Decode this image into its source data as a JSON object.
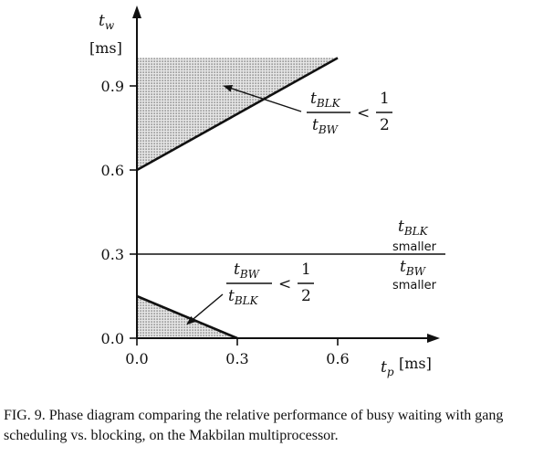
{
  "chart_data": {
    "type": "area",
    "x_axis": {
      "label": "t",
      "label_subscript": "p",
      "unit": "[ms]",
      "range": [
        0,
        0.72
      ],
      "ticks": [
        "0.0",
        "0.3",
        "0.6"
      ],
      "tick_values": [
        0.0,
        0.3,
        0.6
      ]
    },
    "y_axis": {
      "label": "t",
      "label_subscript": "w",
      "unit": "[ms]",
      "range": [
        0,
        1.0
      ],
      "ticks": [
        "0.0",
        "0.3",
        "0.6",
        "0.9"
      ],
      "tick_values": [
        0.0,
        0.3,
        0.6,
        0.9
      ]
    },
    "grid": false,
    "regions": [
      {
        "name": "upper-region",
        "boundary": {
          "x": [
            0.0,
            0.6
          ],
          "y": [
            0.6,
            1.0
          ]
        },
        "fill": "dotted"
      },
      {
        "name": "lower-region",
        "boundary": {
          "x": [
            0.0,
            0.3
          ],
          "y": [
            0.15,
            0.0
          ]
        },
        "fill": "dotted"
      }
    ],
    "horizontal_line": {
      "y": 0.3
    },
    "annotations": {
      "upper": {
        "num": "t",
        "num_sub": "BLK",
        "den": "t",
        "den_sub": "BW",
        "rel": "<",
        "rhs_num": "1",
        "rhs_den": "2",
        "points_to": {
          "x": 0.26,
          "y": 0.9
        }
      },
      "lower": {
        "num": "t",
        "num_sub": "BW",
        "den": "t",
        "den_sub": "BLK",
        "rel": "<",
        "rhs_num": "1",
        "rhs_den": "2",
        "points_to": {
          "x": 0.15,
          "y": 0.05
        }
      },
      "line_above": {
        "sym": "t",
        "sub": "BLK",
        "word": "smaller"
      },
      "line_below": {
        "sym": "t",
        "sub": "BW",
        "word": "smaller"
      }
    }
  },
  "caption": "FIG. 9.   Phase diagram comparing the relative performance of busy waiting with gang scheduling vs. blocking, on the Makbilan multiprocessor.",
  "colors": {
    "ink": "#111111",
    "dots": "#555555",
    "fill_bg": "#e6e6e6"
  }
}
